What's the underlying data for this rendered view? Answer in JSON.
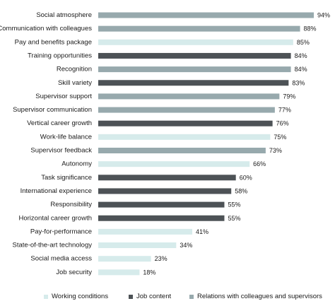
{
  "chart_data": {
    "type": "bar",
    "orientation": "horizontal",
    "categories": [
      "Social atmosphere",
      "Communication with colleagues",
      "Pay and benefits package",
      "Training opportunities",
      "Recognition",
      "Skill variety",
      "Supervisor support",
      "Supervisor communication",
      "Vertical career growth",
      "Work-life balance",
      "Supervisor feedback",
      "Autonomy",
      "Task significance",
      "International experience",
      "Responsibility",
      "Horizontal career growth",
      "Pay-for-performance",
      "State-of-the-art technology",
      "Social media access",
      "Job security"
    ],
    "values": [
      94,
      88,
      85,
      84,
      84,
      83,
      79,
      77,
      76,
      75,
      73,
      66,
      60,
      58,
      55,
      55,
      41,
      34,
      23,
      18
    ],
    "value_labels": [
      "94%",
      "88%",
      "85%",
      "84%",
      "84%",
      "83%",
      "79%",
      "77%",
      "76%",
      "75%",
      "73%",
      "66%",
      "60%",
      "58%",
      "55%",
      "55%",
      "41%",
      "34%",
      "23%",
      "18%"
    ],
    "groups": [
      "relations",
      "relations",
      "working",
      "job",
      "relations",
      "job",
      "relations",
      "relations",
      "job",
      "working",
      "relations",
      "working",
      "job",
      "job",
      "job",
      "job",
      "working",
      "working",
      "working",
      "working"
    ],
    "series": [
      {
        "key": "working",
        "name": "Working conditions",
        "color": "#d6ebeb"
      },
      {
        "key": "job",
        "name": "Job content",
        "color": "#4d5256"
      },
      {
        "key": "relations",
        "name": "Relations with colleagues and supervisors",
        "color": "#97a9ad"
      }
    ],
    "xlim": [
      0,
      100
    ],
    "legend_position": "bottom",
    "grid": false
  }
}
